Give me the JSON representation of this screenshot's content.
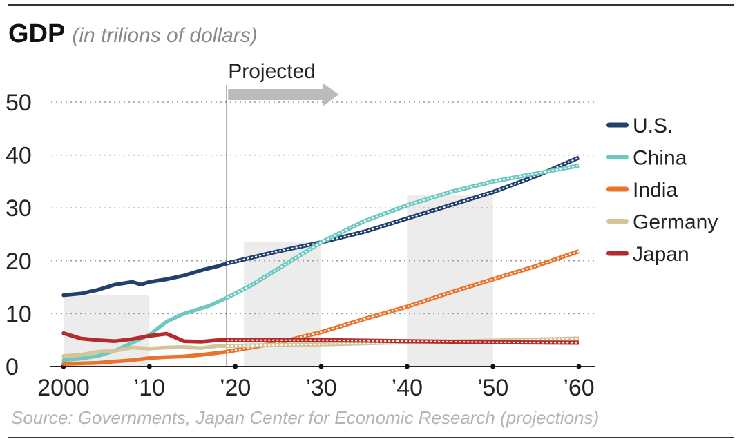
{
  "chart_data": {
    "type": "line",
    "title": "GDP",
    "subtitle": "(in trilions of dollars)",
    "source": "Source: Governments, Japan Center for Economic Research (projections)",
    "projected_label": "Projected",
    "projection_start_year": 2019,
    "xlim": [
      2000,
      2060
    ],
    "ylim": [
      0,
      50
    ],
    "x_ticks": [
      {
        "year": 2000,
        "label": "2000"
      },
      {
        "year": 2010,
        "label": "’10"
      },
      {
        "year": 2020,
        "label": "’20"
      },
      {
        "year": 2030,
        "label": "’30"
      },
      {
        "year": 2040,
        "label": "’40"
      },
      {
        "year": 2050,
        "label": "’50"
      },
      {
        "year": 2060,
        "label": "’60"
      }
    ],
    "y_ticks": [
      {
        "value": 0,
        "label": "0"
      },
      {
        "value": 10,
        "label": "10"
      },
      {
        "value": 20,
        "label": "20"
      },
      {
        "value": 30,
        "label": "30"
      },
      {
        "value": 40,
        "label": "40"
      },
      {
        "value": 50,
        "label": "50"
      }
    ],
    "recession_bands": [
      {
        "from": 2000,
        "to": 2010,
        "top": 13.5
      },
      {
        "from": 2021,
        "to": 2030,
        "top": 23.5
      },
      {
        "from": 2040,
        "to": 2050,
        "top": 32.5
      }
    ],
    "series": [
      {
        "name": "U.S.",
        "color": "#223f6e",
        "x": [
          2000,
          2002,
          2004,
          2006,
          2008,
          2009,
          2010,
          2012,
          2014,
          2016,
          2018,
          2019
        ],
        "y": [
          13.5,
          13.8,
          14.5,
          15.5,
          16.0,
          15.5,
          16.0,
          16.5,
          17.2,
          18.2,
          19.0,
          19.5
        ],
        "proj_x": [
          2019,
          2025,
          2030,
          2035,
          2040,
          2045,
          2050,
          2055,
          2060
        ],
        "proj_y": [
          19.5,
          21.8,
          23.5,
          25.5,
          28.0,
          30.5,
          33.0,
          36.0,
          39.5
        ]
      },
      {
        "name": "China",
        "color": "#6dc8c2",
        "x": [
          2000,
          2002,
          2004,
          2006,
          2008,
          2010,
          2012,
          2014,
          2016,
          2017,
          2019
        ],
        "y": [
          1.2,
          1.5,
          2.0,
          3.0,
          4.5,
          6.0,
          8.5,
          10.0,
          11.0,
          11.5,
          13.0
        ],
        "proj_x": [
          2019,
          2022,
          2025,
          2030,
          2035,
          2040,
          2045,
          2050,
          2055,
          2060
        ],
        "proj_y": [
          13.0,
          15.5,
          18.5,
          23.5,
          27.5,
          30.5,
          33.0,
          35.0,
          36.5,
          38.0
        ]
      },
      {
        "name": "India",
        "color": "#e9732c",
        "x": [
          2000,
          2004,
          2008,
          2010,
          2012,
          2014,
          2016,
          2018,
          2019
        ],
        "y": [
          0.5,
          0.7,
          1.2,
          1.6,
          1.8,
          1.9,
          2.2,
          2.6,
          2.8
        ],
        "proj_x": [
          2019,
          2025,
          2030,
          2035,
          2040,
          2045,
          2050,
          2055,
          2060
        ],
        "proj_y": [
          2.8,
          4.5,
          6.5,
          9.0,
          11.3,
          14.0,
          16.5,
          19.0,
          21.8
        ]
      },
      {
        "name": "Germany",
        "color": "#d4c49a",
        "x": [
          2000,
          2002,
          2004,
          2006,
          2008,
          2010,
          2012,
          2014,
          2016,
          2018,
          2019
        ],
        "y": [
          2.0,
          2.2,
          2.8,
          3.0,
          3.6,
          3.4,
          3.6,
          3.7,
          3.5,
          3.9,
          3.9
        ],
        "proj_x": [
          2019,
          2030,
          2040,
          2050,
          2060
        ],
        "proj_y": [
          3.9,
          4.2,
          4.6,
          4.9,
          5.3
        ]
      },
      {
        "name": "Japan",
        "color": "#b52a2a",
        "x": [
          2000,
          2002,
          2004,
          2006,
          2008,
          2010,
          2012,
          2014,
          2016,
          2018,
          2019
        ],
        "y": [
          6.3,
          5.3,
          5.0,
          4.8,
          5.2,
          5.8,
          6.2,
          4.8,
          4.7,
          5.0,
          5.0
        ],
        "proj_x": [
          2019,
          2030,
          2040,
          2050,
          2060
        ],
        "proj_y": [
          5.0,
          5.0,
          4.8,
          4.6,
          4.5
        ]
      }
    ]
  }
}
